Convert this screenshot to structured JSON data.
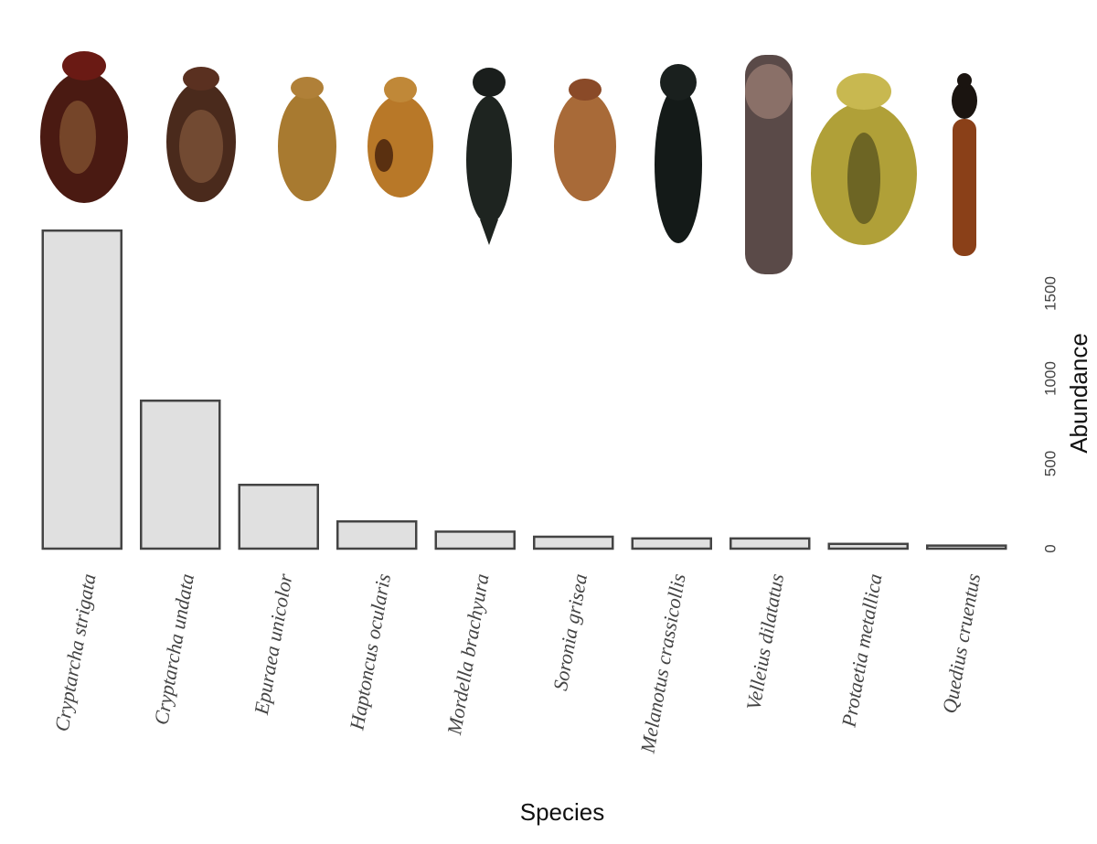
{
  "chart_data": {
    "type": "bar",
    "x_label": "Species",
    "y_label": "Abundance",
    "categories": [
      "Cryptarcha strigata",
      "Cryptarcha undata",
      "Epuraea unicolor",
      "Haptoncus ocularis",
      "Mordella brachyura",
      "Soronia grisea",
      "Melanotus crassicollis",
      "Velleius dilatatus",
      "Protaetia metallica",
      "Quedius cruentus"
    ],
    "values": [
      1870,
      870,
      375,
      160,
      100,
      70,
      60,
      60,
      28,
      18
    ],
    "color": "#e0e0e0",
    "ylim": [
      0,
      2000
    ],
    "yticks": [
      0,
      500,
      1000,
      1500
    ]
  }
}
